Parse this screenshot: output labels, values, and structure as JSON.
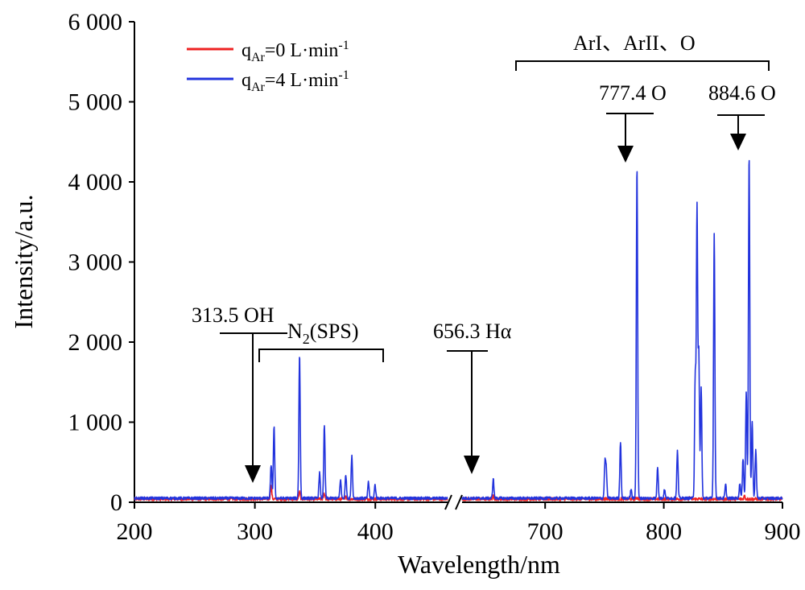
{
  "chart_data": {
    "type": "line",
    "xlabel": "Wavelength/nm",
    "ylabel": "Intensity/a.u.",
    "ylim": [
      0,
      6000
    ],
    "yticks": [
      0,
      1000,
      2000,
      3000,
      4000,
      5000,
      6000
    ],
    "ytick_labels": [
      "0",
      "1 000",
      "2 000",
      "3 000",
      "4 000",
      "5 000",
      "6 000"
    ],
    "x_segments": [
      {
        "range": [
          200,
          460
        ],
        "ticks": [
          200,
          300,
          400
        ],
        "tick_labels": [
          "200",
          "300",
          "400"
        ]
      },
      {
        "range": [
          630,
          900
        ],
        "ticks": [
          700,
          800,
          900
        ],
        "tick_labels": [
          "700",
          "800",
          "900"
        ]
      }
    ],
    "axis_break": "//",
    "legend_position": "top-left",
    "legend": [
      {
        "label_main": "q",
        "label_sub": "Ar",
        "label_rest": "=0 L·min",
        "label_sup": "-1",
        "color": "#ee2222"
      },
      {
        "label_main": "q",
        "label_sub": "Ar",
        "label_rest": "=4 L·min",
        "label_sup": "-1",
        "color": "#2233dd"
      }
    ],
    "series": [
      {
        "name": "qAr=0 L·min-1",
        "color": "#ee2222",
        "baseline": 40,
        "peaks": [
          [
            313.5,
            160
          ],
          [
            337.1,
            90
          ],
          [
            357.7,
            70
          ],
          [
            375.5,
            40
          ],
          [
            656.3,
            35
          ],
          [
            777.4,
            20
          ],
          [
            822,
            25
          ],
          [
            868,
            40
          ]
        ]
      },
      {
        "name": "qAr=4 L·min-1",
        "color": "#2233dd",
        "baseline": 50,
        "peaks": [
          [
            313.5,
            420
          ],
          [
            315.9,
            900
          ],
          [
            337.1,
            1800
          ],
          [
            353.7,
            320
          ],
          [
            357.7,
            900
          ],
          [
            371.1,
            230
          ],
          [
            375.5,
            300
          ],
          [
            380.5,
            540
          ],
          [
            394.3,
            200
          ],
          [
            399.8,
            170
          ],
          [
            656.3,
            240
          ],
          [
            750.4,
            430
          ],
          [
            751.5,
            350
          ],
          [
            763.5,
            710
          ],
          [
            772.4,
            110
          ],
          [
            777.4,
            4150
          ],
          [
            794.8,
            390
          ],
          [
            800.6,
            110
          ],
          [
            811.5,
            590
          ],
          [
            826.5,
            1530
          ],
          [
            828.0,
            3600
          ],
          [
            829.5,
            1800
          ],
          [
            831.5,
            1380
          ],
          [
            842.5,
            3300
          ],
          [
            852.1,
            170
          ],
          [
            864.1,
            190
          ],
          [
            866.8,
            500
          ],
          [
            869.5,
            1330
          ],
          [
            871.9,
            4300
          ],
          [
            874.5,
            950
          ],
          [
            877.5,
            620
          ]
        ]
      }
    ],
    "annotations": [
      {
        "text": "313.5 OH",
        "x": 313.5,
        "arrow_tip": 40
      },
      {
        "text_main": "N",
        "text_sub": "2",
        "text_rest": "(SPS)",
        "bracket": [
          322,
          430
        ]
      },
      {
        "text": "656.3 Hα",
        "x": 656.3,
        "arrow_tip": 40
      },
      {
        "text": "ArI、ArII、O",
        "bracket": [
          690,
          890
        ]
      },
      {
        "text": "777.4 O",
        "x": 777.4,
        "arrow_tip": 4220
      },
      {
        "text": "884.6 O",
        "x": 871.9,
        "arrow_tip": 4380
      }
    ]
  }
}
